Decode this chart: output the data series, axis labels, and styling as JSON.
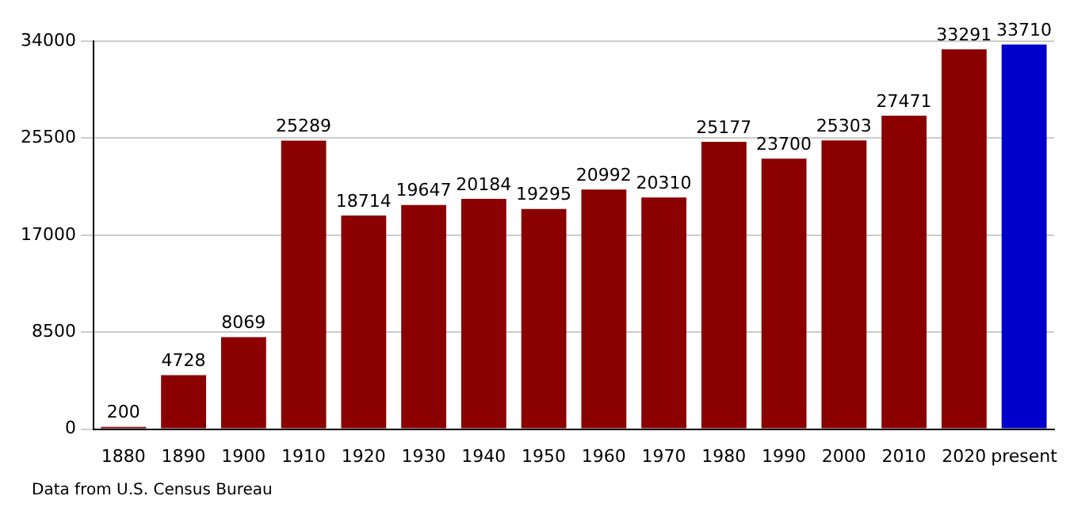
{
  "chart_data": {
    "type": "bar",
    "categories": [
      "1880",
      "1890",
      "1900",
      "1910",
      "1920",
      "1930",
      "1940",
      "1950",
      "1960",
      "1970",
      "1980",
      "1990",
      "2000",
      "2010",
      "2020",
      "present"
    ],
    "values": [
      200,
      4728,
      8069,
      25289,
      18714,
      19647,
      20184,
      19295,
      20992,
      20310,
      25177,
      23700,
      25303,
      27471,
      33291,
      33710
    ],
    "colors": [
      "#8b0000",
      "#8b0000",
      "#8b0000",
      "#8b0000",
      "#8b0000",
      "#8b0000",
      "#8b0000",
      "#8b0000",
      "#8b0000",
      "#8b0000",
      "#8b0000",
      "#8b0000",
      "#8b0000",
      "#8b0000",
      "#8b0000",
      "#0000cd"
    ],
    "ylim": [
      0,
      34000
    ],
    "yticks": [
      0,
      8500,
      17000,
      25500,
      34000
    ],
    "grid": "y",
    "data_labels": true,
    "legend": false,
    "annotations": [
      "Data from U.S. Census Bureau"
    ]
  }
}
